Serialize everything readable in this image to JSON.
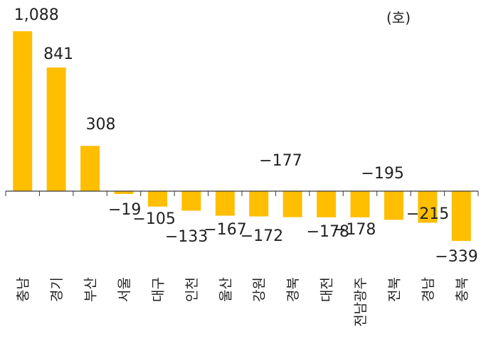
{
  "chart_data": {
    "type": "bar",
    "unit": "(호)",
    "categories": [
      "충남",
      "경기",
      "부산",
      "서울",
      "대구",
      "인천",
      "울산",
      "강원",
      "경북",
      "대전",
      "전남광주",
      "전북",
      "경남",
      "충북"
    ],
    "values": [
      1088,
      841,
      308,
      -19,
      -105,
      -133,
      -167,
      -172,
      -177,
      -178,
      -178,
      -195,
      -215,
      -339
    ],
    "data_labels": [
      "1,088",
      "841",
      "308",
      "−19",
      "−105",
      "−133",
      "−167",
      "−172",
      "−177",
      "−178",
      "−178",
      "−195",
      "−215",
      "−339"
    ],
    "ylim": [
      -339,
      1088
    ],
    "grid": false,
    "colors": {
      "bar": "#FFBE00",
      "axis": "#3a3a3a",
      "text": "#222222"
    }
  }
}
